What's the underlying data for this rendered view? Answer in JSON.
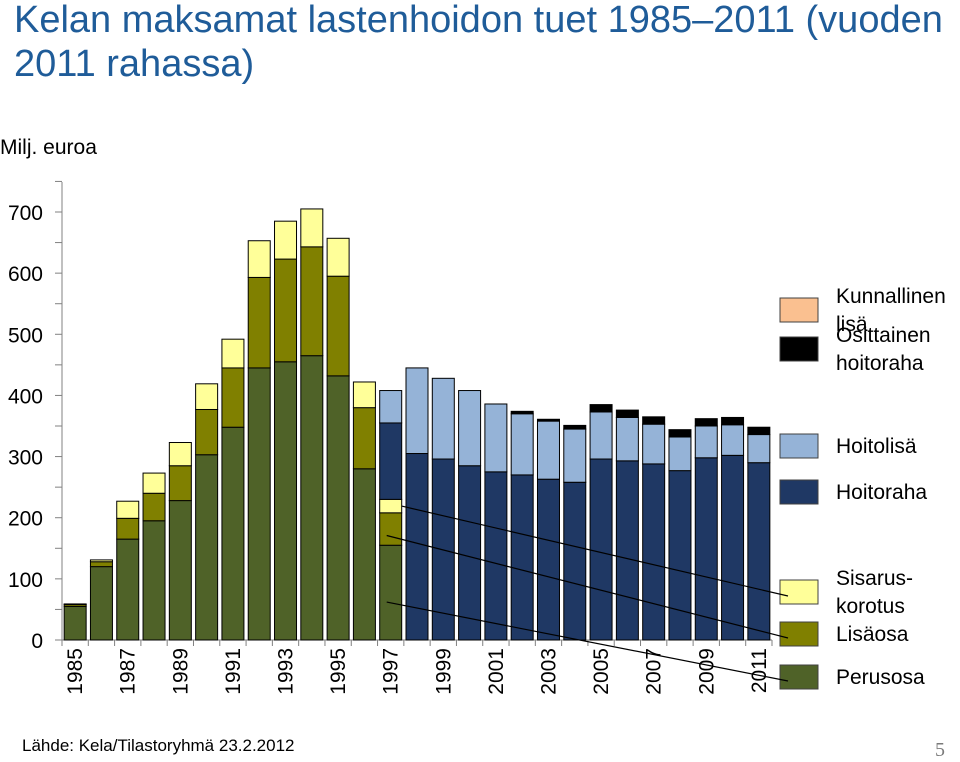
{
  "title": "Kelan maksamat lastenhoidon tuet 1985–2011 (vuoden 2011 rahassa)",
  "unit_label": "Milj. euroa",
  "source": "Lähde: Kela/Tilastoryhmä 23.2.2012",
  "page_number": "5",
  "colors": {
    "Perusosa": "#4f6228",
    "Lisäosa": "#808000",
    "Sisaruskorotus": "#ffff99",
    "Hoitoraha": "#1f3864",
    "Hoitolisä": "#95b3d7",
    "Osittainen hoitoraha": "#000000",
    "Kunnallinen lisä": "#fac090"
  },
  "legend": [
    {
      "key": "Kunnallinen lisä",
      "lines": [
        "Kunnallinen",
        "lisä"
      ]
    },
    {
      "key": "Osittainen hoitoraha",
      "lines": [
        "Osittainen",
        "hoitoraha"
      ]
    },
    {
      "key": "Hoitolisä",
      "lines": [
        "Hoitolisä"
      ]
    },
    {
      "key": "Hoitoraha",
      "lines": [
        "Hoitoraha"
      ]
    },
    {
      "key": "Sisaruskorotus",
      "lines": [
        "Sisarus-",
        "korotus"
      ]
    },
    {
      "key": "Lisäosa",
      "lines": [
        "Lisäosa"
      ]
    },
    {
      "key": "Perusosa",
      "lines": [
        "Perusosa"
      ]
    }
  ],
  "chart_data": {
    "type": "bar",
    "stacked": true,
    "title": "Kelan maksamat lastenhoidon tuet 1985–2011 (vuoden 2011 rahassa)",
    "ylabel": "Milj. euroa",
    "ylim": [
      0,
      700
    ],
    "yticks": [
      0,
      100,
      200,
      300,
      400,
      500,
      600,
      700
    ],
    "categories": [
      "1985",
      "1986",
      "1987",
      "1988",
      "1989",
      "1990",
      "1991",
      "1992",
      "1993",
      "1994",
      "1995",
      "1996",
      "1997",
      "1998",
      "1999",
      "2000",
      "2001",
      "2002",
      "2003",
      "2004",
      "2005",
      "2006",
      "2007",
      "2008",
      "2009",
      "2010",
      "2011"
    ],
    "tick_labels": [
      "1985",
      "1987",
      "1989",
      "1991",
      "1993",
      "1995",
      "1997",
      "1999",
      "2001",
      "2003",
      "2005",
      "2007",
      "2009",
      "2011"
    ],
    "series": [
      {
        "name": "Perusosa",
        "values": [
          55,
          120,
          165,
          195,
          228,
          303,
          348,
          445,
          455,
          465,
          432,
          280,
          155,
          0,
          0,
          0,
          0,
          0,
          0,
          0,
          0,
          0,
          0,
          0,
          0,
          0,
          0
        ]
      },
      {
        "name": "Lisäosa",
        "values": [
          3,
          8,
          34,
          45,
          57,
          74,
          97,
          148,
          168,
          178,
          163,
          100,
          53,
          0,
          0,
          0,
          0,
          0,
          0,
          0,
          0,
          0,
          0,
          0,
          0,
          0,
          0
        ]
      },
      {
        "name": "Sisaruskorotus",
        "values": [
          1,
          3,
          28,
          33,
          38,
          42,
          47,
          60,
          62,
          62,
          62,
          42,
          22,
          0,
          0,
          0,
          0,
          0,
          0,
          0,
          0,
          0,
          0,
          0,
          0,
          0,
          0
        ]
      },
      {
        "name": "Hoitoraha",
        "values": [
          0,
          0,
          0,
          0,
          0,
          0,
          0,
          0,
          0,
          0,
          0,
          0,
          125,
          305,
          296,
          285,
          275,
          270,
          263,
          258,
          296,
          293,
          288,
          277,
          298,
          302,
          290
        ]
      },
      {
        "name": "Hoitolisä",
        "values": [
          0,
          0,
          0,
          0,
          0,
          0,
          0,
          0,
          0,
          0,
          0,
          0,
          53,
          140,
          132,
          123,
          111,
          100,
          95,
          87,
          77,
          71,
          65,
          55,
          52,
          50,
          46
        ]
      },
      {
        "name": "Osittainen hoitoraha",
        "values": [
          0,
          0,
          0,
          0,
          0,
          0,
          0,
          0,
          0,
          0,
          0,
          0,
          0,
          0,
          0,
          0,
          0,
          4,
          3,
          6,
          12,
          12,
          12,
          12,
          12,
          12,
          12
        ]
      },
      {
        "name": "Kunnallinen lisä",
        "values": [
          0,
          0,
          0,
          0,
          0,
          0,
          0,
          0,
          0,
          0,
          0,
          0,
          0,
          0,
          0,
          0,
          0,
          0,
          0,
          0,
          0,
          0,
          0,
          0,
          0,
          0,
          0
        ]
      }
    ]
  }
}
